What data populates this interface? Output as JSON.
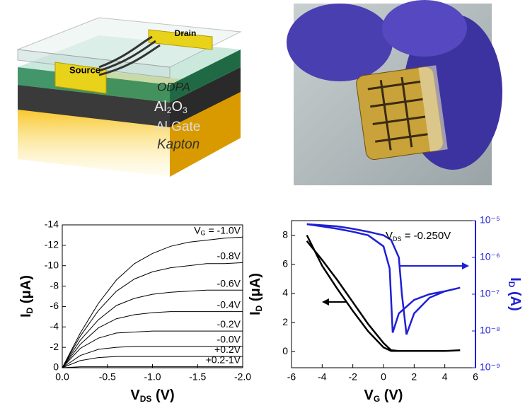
{
  "schematic": {
    "labels": {
      "source": "Source",
      "drain": "Drain",
      "odpa": "ODPA",
      "oxide": [
        "Al",
        "2",
        "O",
        "3"
      ],
      "gate": "Al Gate",
      "substrate": "Kapton"
    }
  },
  "chart_data": [
    {
      "type": "line",
      "xlabel": [
        "V",
        "DS",
        " (V)"
      ],
      "ylabel": [
        "I",
        "D",
        " (μA)"
      ],
      "legend_prefix": [
        "V",
        "G",
        " = "
      ],
      "x": [
        0,
        -0.2,
        -0.4,
        -0.6,
        -0.8,
        -1.0,
        -1.2,
        -1.4,
        -1.6,
        -1.8,
        -2.0
      ],
      "xlim": [
        0,
        -2.0
      ],
      "xticks": [
        {
          "value": 0,
          "label": "0.0"
        },
        -0.5,
        {
          "value": -1.0,
          "label": "-1.0"
        },
        -1.5,
        {
          "value": -2.0,
          "label": "-2.0"
        }
      ],
      "ylim": [
        0,
        -14
      ],
      "yticks": [
        0,
        -2,
        -4,
        -6,
        -8,
        -10,
        -12,
        -14
      ],
      "series": [
        {
          "name": "-1.0V",
          "color": "#000000",
          "values": [
            0,
            -3.4,
            -6.3,
            -8.6,
            -10.2,
            -11.2,
            -11.9,
            -12.3,
            -12.5,
            -12.7,
            -12.8
          ]
        },
        {
          "name": "-0.8V",
          "color": "#000000",
          "values": [
            0,
            -3.1,
            -5.6,
            -7.5,
            -8.7,
            -9.4,
            -9.8,
            -10.0,
            -10.2,
            -10.2,
            -10.3
          ]
        },
        {
          "name": "-0.6V",
          "color": "#000000",
          "values": [
            0,
            -2.7,
            -4.7,
            -6.1,
            -6.8,
            -7.2,
            -7.4,
            -7.5,
            -7.6,
            -7.6,
            -7.6
          ]
        },
        {
          "name": "-0.4V",
          "color": "#000000",
          "values": [
            0,
            -2.3,
            -3.9,
            -4.8,
            -5.2,
            -5.4,
            -5.5,
            -5.5,
            -5.5,
            -5.5,
            -5.5
          ]
        },
        {
          "name": "-0.2V",
          "color": "#000000",
          "values": [
            0,
            -1.9,
            -2.9,
            -3.4,
            -3.5,
            -3.6,
            -3.6,
            -3.6,
            -3.6,
            -3.6,
            -3.6
          ]
        },
        {
          "name": "-0.0V",
          "color": "#000000",
          "values": [
            0,
            -1.2,
            -1.8,
            -2.0,
            -2.1,
            -2.1,
            -2.1,
            -2.1,
            -2.1,
            -2.1,
            -2.1
          ]
        },
        {
          "name": "+0.2V",
          "color": "#000000",
          "values": [
            0,
            -0.7,
            -1.0,
            -1.1,
            -1.1,
            -1.1,
            -1.1,
            -1.1,
            -1.1,
            -1.1,
            -1.1
          ]
        },
        {
          "name": "+0.2-1V",
          "color": "#000000",
          "values": [
            0,
            -0.1,
            -0.1,
            -0.1,
            -0.1,
            -0.1,
            -0.1,
            -0.1,
            -0.1,
            -0.1,
            -0.1
          ]
        }
      ]
    },
    {
      "type": "line",
      "xlabel": [
        "V",
        "G",
        " (V)"
      ],
      "ylabel": [
        "I",
        "D",
        " (μA)"
      ],
      "y2label": [
        "I",
        "D",
        " (A)"
      ],
      "annotation": [
        "V",
        "DS",
        " = -0.250V"
      ],
      "xlim": [
        -6,
        6
      ],
      "xticks": [
        -6,
        -4,
        -2,
        0,
        2,
        4,
        6
      ],
      "ylim": [
        -1.1,
        9
      ],
      "yticks": [
        0,
        2,
        4,
        6,
        8
      ],
      "y2lim": [
        1e-09,
        1e-05
      ],
      "y2log": true,
      "y2ticks": [
        {
          "value": 1e-09,
          "label": "10⁻⁹"
        },
        {
          "value": 1e-08,
          "label": "10⁻⁸"
        },
        {
          "value": 1e-07,
          "label": "10⁻⁷"
        },
        {
          "value": 1e-06,
          "label": "10⁻⁶"
        },
        {
          "value": 1e-05,
          "label": "10⁻⁵"
        }
      ],
      "y2color": "#1f1fd6",
      "series": [
        {
          "color": "#000000",
          "x": [
            -5,
            -4,
            -3,
            -2,
            -1,
            0,
            0.5,
            1,
            2,
            3,
            4,
            5,
            4,
            3,
            2,
            1,
            0.5,
            0,
            -1,
            -2,
            -3,
            -4,
            -5
          ],
          "values": [
            7.6,
            6.3,
            4.9,
            3.4,
            1.9,
            0.6,
            0.1,
            0.05,
            0.05,
            0.05,
            0.05,
            0.1,
            0.05,
            0.05,
            0.05,
            0.05,
            0.05,
            0.3,
            1.4,
            2.8,
            4.3,
            5.9,
            8.0
          ]
        },
        {
          "color": "#1f1fd6",
          "axis": "y2",
          "x": [
            -5,
            -4,
            -3,
            -2,
            -1,
            0,
            0.4,
            0.6,
            1,
            2,
            3,
            4,
            5,
            4,
            3,
            2,
            1.5,
            1.2,
            1,
            0.5,
            0,
            -1,
            -2,
            -3,
            -4,
            -5
          ],
          "values": [
            8e-06,
            7e-06,
            6e-06,
            5e-06,
            4e-06,
            2e-06,
            5e-07,
            9e-09,
            3e-08,
            7e-08,
            1e-07,
            1.2e-07,
            1.5e-07,
            1.2e-07,
            8e-08,
            3e-08,
            8e-09,
            1e-07,
            1e-06,
            3e-06,
            4e-06,
            5e-06,
            6e-06,
            7e-06,
            7.5e-06,
            8e-06
          ]
        }
      ]
    }
  ]
}
